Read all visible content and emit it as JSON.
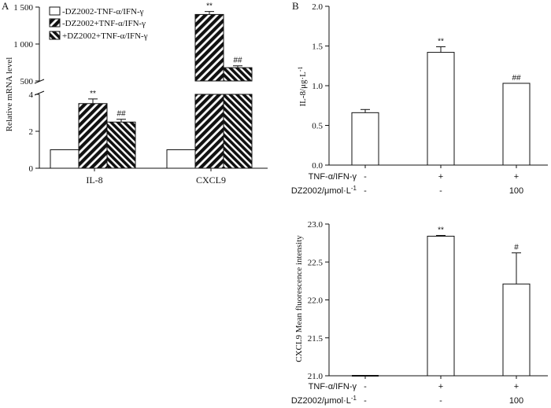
{
  "chart_data": [
    {
      "panel": "A",
      "type": "bar",
      "ylabel": "Relative mRNA level",
      "axis_break": {
        "lower_range": [
          0,
          4
        ],
        "upper_range": [
          500,
          1500
        ]
      },
      "lower_ticks": [
        "0",
        "2",
        "4"
      ],
      "upper_ticks": [
        "500",
        "1 000",
        "1 500"
      ],
      "categories": [
        "IL-8",
        "CXCL9"
      ],
      "legend": [
        "-DZ2002-TNF-α/IFN-γ",
        "-DZ2002+TNF-α/IFN-γ",
        "+DZ2002+TNF-α/IFN-γ"
      ],
      "series": [
        {
          "name": "-DZ2002-TNF-α/IFN-γ",
          "values": [
            1,
            1
          ],
          "errors": [
            0,
            0
          ],
          "labels": [
            "",
            ""
          ]
        },
        {
          "name": "-DZ2002+TNF-α/IFN-γ",
          "values": [
            3.5,
            1400
          ],
          "errors": [
            0.25,
            40
          ],
          "labels": [
            "**",
            "**"
          ]
        },
        {
          "name": "+DZ2002+TNF-α/IFN-γ",
          "values": [
            2.5,
            680
          ],
          "errors": [
            0.15,
            25
          ],
          "labels": [
            "##",
            "##"
          ]
        }
      ]
    },
    {
      "panel": "B",
      "type": "bar",
      "ylabel": "IL-8/μg·L",
      "ylabel_sup": "-1",
      "ylim": [
        0,
        2
      ],
      "ticks": [
        "0.0",
        "0.5",
        "1.0",
        "1.5",
        "2.0"
      ],
      "values": [
        0.66,
        1.42,
        1.03
      ],
      "errors": [
        0.04,
        0.07,
        0
      ],
      "labels": [
        "",
        "**",
        "##"
      ],
      "row_labels": [
        "TNF-α/IFN-γ",
        "DZ2002/μmol·L"
      ],
      "row_label_sup": "-1",
      "rows": [
        [
          "-",
          "+",
          "+"
        ],
        [
          "-",
          "-",
          "100"
        ]
      ]
    },
    {
      "panel": "",
      "type": "bar",
      "ylabel": "CXCL9 Mean fluorescence intensity",
      "ylim": [
        21,
        23
      ],
      "ticks": [
        "21.0",
        "21.5",
        "22.0",
        "22.5",
        "23.0"
      ],
      "values": [
        21.0,
        22.84,
        22.21
      ],
      "errors": [
        0,
        0.01,
        0.41
      ],
      "labels": [
        "",
        "**",
        "#"
      ],
      "row_labels": [
        "TNF-α/IFN-γ",
        "DZ2002/μmol·L"
      ],
      "row_label_sup": "-1",
      "rows": [
        [
          "-",
          "+",
          "+"
        ],
        [
          "-",
          "-",
          "100"
        ]
      ]
    }
  ]
}
